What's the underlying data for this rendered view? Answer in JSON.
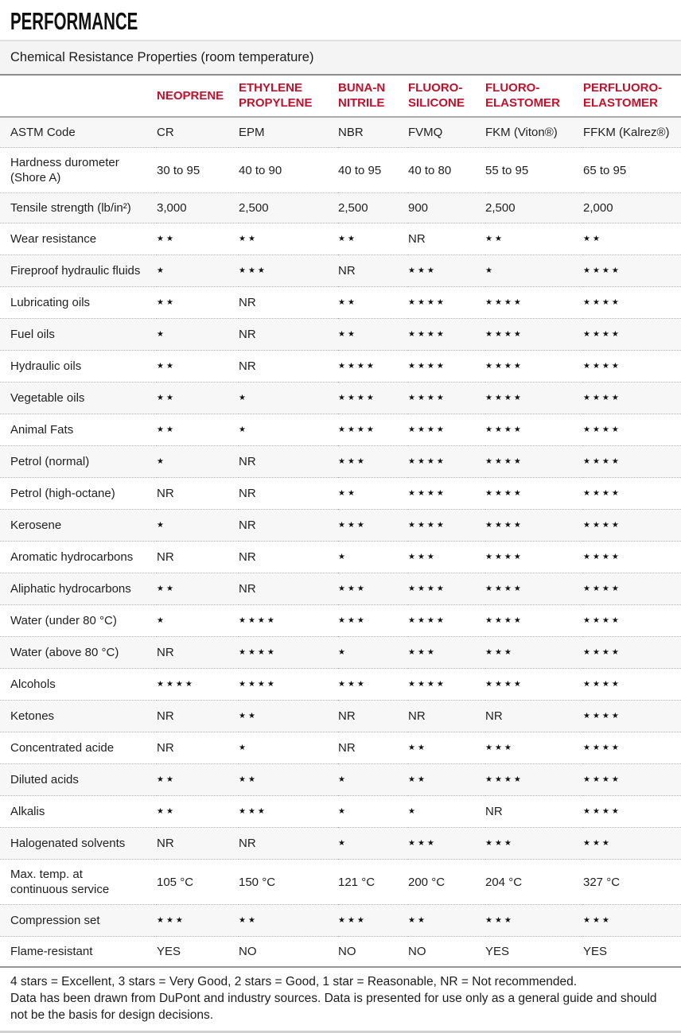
{
  "page": {
    "title": "PERFORMANCE",
    "subtitle": "Chemical Resistance Properties (room temperature)"
  },
  "colors": {
    "header_red": "#c0122d",
    "row_stripe": "#f7f7f7",
    "star_black": "#111111"
  },
  "chart_data": {
    "type": "table",
    "title": "Chemical Resistance Properties (room temperature)",
    "rating_scale": {
      "4": "Excellent",
      "3": "Very Good",
      "2": "Good",
      "1": "Reasonable",
      "NR": "Not recommended"
    },
    "columns": [
      "NEOPRENE",
      "ETHYLENE\nPROPYLENE",
      "BUNA-N\nNITRILE",
      "FLUORO-\nSILICONE",
      "FLUORO-\nELASTOMER",
      "PERFLUORO-\nELASTOMER"
    ],
    "rows": [
      {
        "label": "ASTM Code",
        "values": [
          "CR",
          "EPM",
          "NBR",
          "FVMQ",
          "FKM (Viton®)",
          "FFKM (Kalrez®)"
        ]
      },
      {
        "label": "Hardness durometer\n(Shore A)",
        "values": [
          "30 to 95",
          "40 to 90",
          "40 to 95",
          "40 to 80",
          "55 to 95",
          "65 to 95"
        ]
      },
      {
        "label": "Tensile strength (lb/in²)",
        "values": [
          "3,000",
          "2,500",
          "2,500",
          "900",
          "2,500",
          "2,000"
        ]
      },
      {
        "label": "Wear resistance",
        "values": [
          2,
          2,
          2,
          "NR",
          2,
          2
        ]
      },
      {
        "label": "Fireproof hydraulic fluids",
        "values": [
          1,
          3,
          "NR",
          3,
          1,
          4
        ]
      },
      {
        "label": "Lubricating oils",
        "values": [
          2,
          "NR",
          2,
          4,
          4,
          4
        ]
      },
      {
        "label": "Fuel oils",
        "values": [
          1,
          "NR",
          2,
          4,
          4,
          4
        ]
      },
      {
        "label": "Hydraulic oils",
        "values": [
          2,
          "NR",
          4,
          4,
          4,
          4
        ]
      },
      {
        "label": "Vegetable oils",
        "values": [
          2,
          1,
          4,
          4,
          4,
          4
        ]
      },
      {
        "label": "Animal Fats",
        "values": [
          2,
          1,
          4,
          4,
          4,
          4
        ]
      },
      {
        "label": "Petrol (normal)",
        "values": [
          1,
          "NR",
          3,
          4,
          4,
          4
        ]
      },
      {
        "label": "Petrol (high-octane)",
        "values": [
          "NR",
          "NR",
          2,
          4,
          4,
          4
        ]
      },
      {
        "label": "Kerosene",
        "values": [
          1,
          "NR",
          3,
          4,
          4,
          4
        ]
      },
      {
        "label": "Aromatic hydrocarbons",
        "values": [
          "NR",
          "NR",
          1,
          3,
          4,
          4
        ]
      },
      {
        "label": "Aliphatic hydrocarbons",
        "values": [
          2,
          "NR",
          3,
          4,
          4,
          4
        ]
      },
      {
        "label": "Water (under 80 °C)",
        "values": [
          1,
          4,
          3,
          4,
          4,
          4
        ]
      },
      {
        "label": "Water (above 80 °C)",
        "values": [
          "NR",
          4,
          1,
          3,
          3,
          4
        ]
      },
      {
        "label": "Alcohols",
        "values": [
          4,
          4,
          3,
          4,
          4,
          4
        ]
      },
      {
        "label": "Ketones",
        "values": [
          "NR",
          2,
          "NR",
          "NR",
          "NR",
          4
        ]
      },
      {
        "label": "Concentrated acide",
        "values": [
          "NR",
          1,
          "NR",
          2,
          3,
          4
        ]
      },
      {
        "label": "Diluted acids",
        "values": [
          2,
          2,
          1,
          2,
          4,
          4
        ]
      },
      {
        "label": "Alkalis",
        "values": [
          2,
          3,
          1,
          1,
          "NR",
          4
        ]
      },
      {
        "label": "Halogenated solvents",
        "values": [
          "NR",
          "NR",
          1,
          3,
          3,
          3
        ]
      },
      {
        "label": "Max. temp. at\ncontinuous service",
        "values": [
          "105 °C",
          "150 °C",
          "121 °C",
          "200 °C",
          "204 °C",
          "327 °C"
        ]
      },
      {
        "label": "Compression set",
        "values": [
          3,
          2,
          3,
          2,
          3,
          3
        ]
      },
      {
        "label": "Flame-resistant",
        "values": [
          "YES",
          "NO",
          "NO",
          "NO",
          "YES",
          "YES"
        ]
      }
    ]
  },
  "footnotes": [
    "4 stars = Excellent, 3 stars = Very Good, 2 stars = Good, 1 star = Reasonable, NR = Not recommended.",
    "Data has been drawn from DuPont and industry sources. Data is presented for use only as a general guide and should not be the basis for design decisions."
  ]
}
